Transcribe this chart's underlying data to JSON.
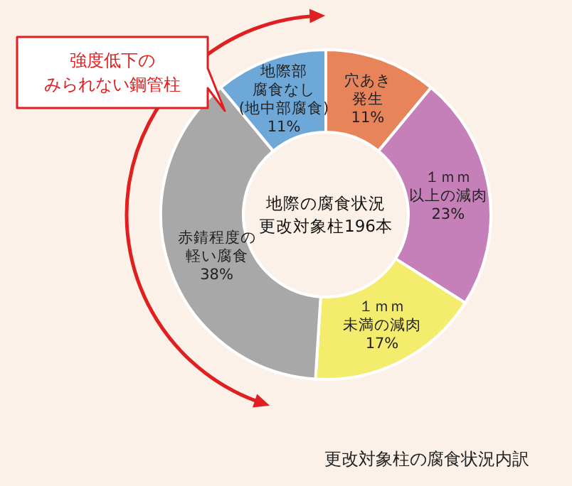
{
  "chart_data": {
    "type": "donut",
    "title": "更改対象柱の腐食状況内訳",
    "categories": [
      "穴あき発生",
      "１ｍｍ以上の減肉",
      "１ｍｍ未満の減肉",
      "赤錆程度の軽い腐食",
      "地際部腐食なし(地中部腐食)"
    ],
    "values": [
      11,
      23,
      17,
      38,
      11
    ],
    "value_labels": [
      "11%",
      "23%",
      "17%",
      "38%",
      "11%"
    ],
    "colors": [
      "#e8845a",
      "#c680b9",
      "#f4ec6c",
      "#a8a8a8",
      "#6da8d8"
    ],
    "annotations": [
      "地際の腐食状況更改対象柱196本",
      "強度低下のみられない鋼管柱"
    ]
  }
}
